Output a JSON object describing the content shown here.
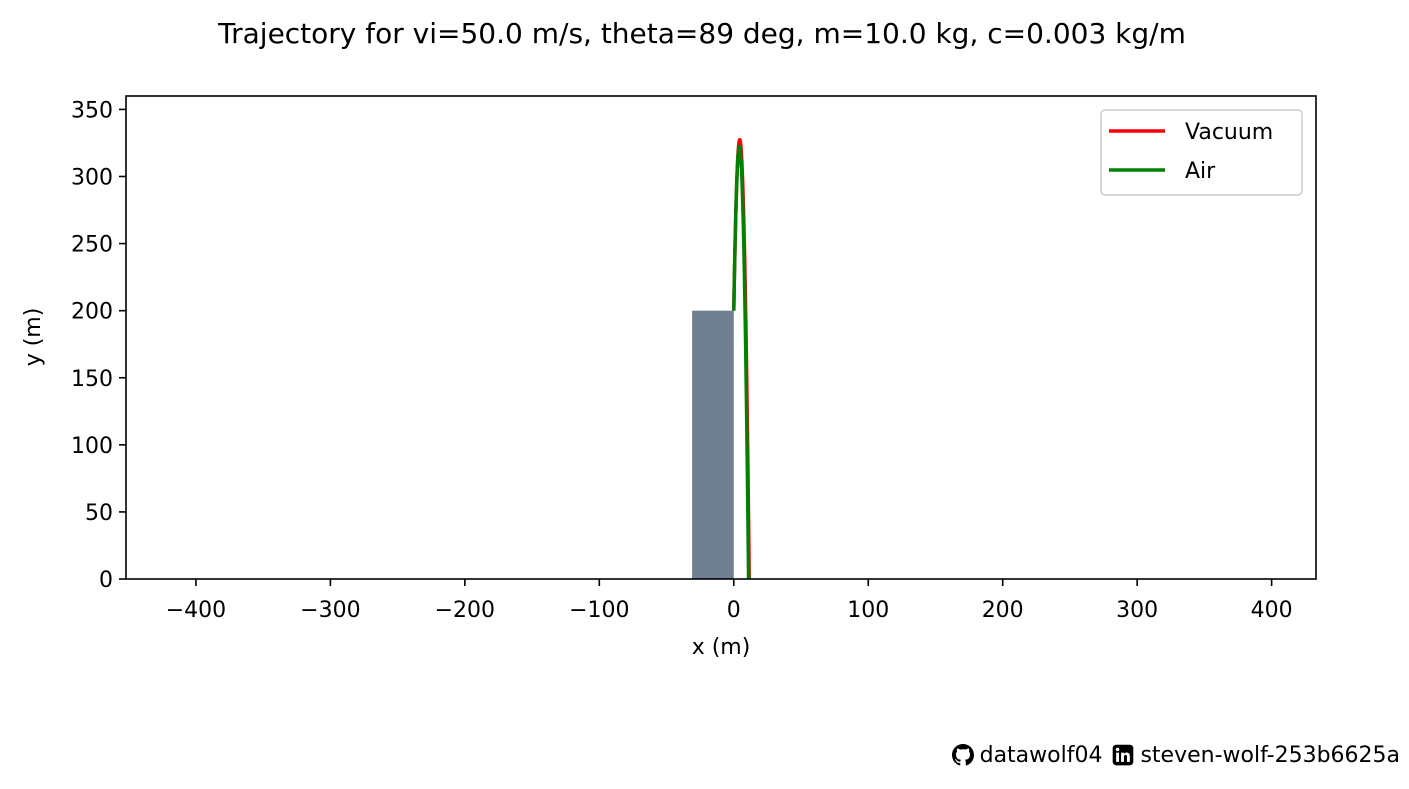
{
  "chart_data": {
    "type": "line",
    "title": "Trajectory for vi=50.0 m/s, theta=89 deg, m=10.0 kg, c=0.003 kg/m",
    "xlabel": "x (m)",
    "ylabel": "y (m)",
    "xlim": [
      -452,
      433
    ],
    "ylim": [
      0,
      360
    ],
    "xticks": [
      -400,
      -300,
      -200,
      -100,
      0,
      100,
      200,
      300,
      400
    ],
    "xtick_labels": [
      "−400",
      "−300",
      "−200",
      "−100",
      "0",
      "100",
      "200",
      "300",
      "400"
    ],
    "yticks": [
      0,
      50,
      100,
      150,
      200,
      250,
      300,
      350
    ],
    "ytick_labels": [
      "0",
      "50",
      "100",
      "150",
      "200",
      "250",
      "300",
      "350"
    ],
    "legend_position": "top-right",
    "grid": false,
    "building": {
      "x": [
        -31,
        0
      ],
      "height": 200,
      "color": "#708090"
    },
    "series": [
      {
        "name": "Vacuum",
        "color": "#ff0000",
        "v0": 50.0,
        "theta_deg": 89,
        "x0": 0,
        "y0": 200,
        "x_land": 11.5,
        "apex_y": 327.4
      },
      {
        "name": "Air",
        "color": "#008000",
        "v0": 50.0,
        "theta_deg": 89,
        "x0": 0,
        "y0": 200,
        "x_land": 11.0,
        "apex_y": 322.3
      }
    ]
  },
  "footer": {
    "github_icon": "github-icon",
    "github_user": "datawolf04",
    "linkedin_icon": "linkedin-icon",
    "linkedin_user": "steven-wolf-253b6625a"
  }
}
